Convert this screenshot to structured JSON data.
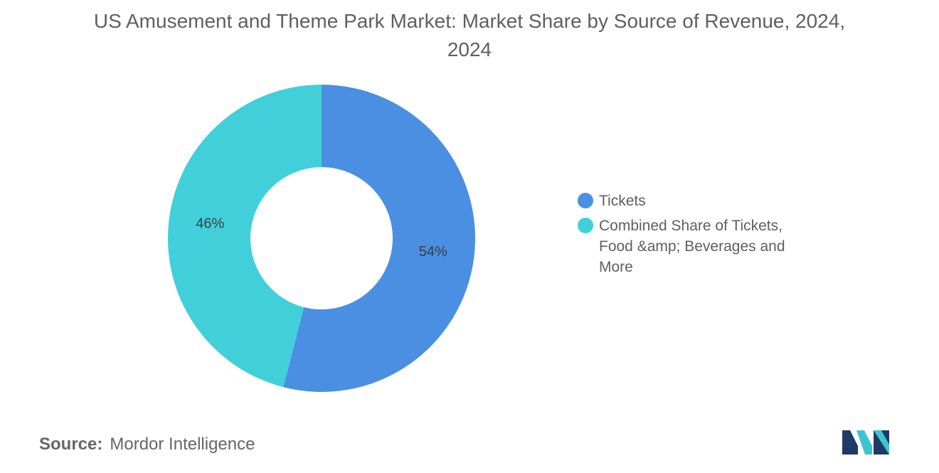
{
  "chart_data": {
    "type": "pie",
    "variant": "donut",
    "title": "US Amusement and Theme Park Market: Market Share by Source of Revenue, 2024, 2024",
    "categories": [
      "Tickets",
      "Combined Share of Tickets, Food &amp; Beverages and More"
    ],
    "values": [
      54,
      46
    ],
    "value_labels": [
      "54%",
      "46%"
    ],
    "colors": [
      "#4a8fe2",
      "#41d0da"
    ],
    "legend_position": "right"
  },
  "source": {
    "label": "Source:",
    "value": "Mordor Intelligence"
  },
  "logo": {
    "icon": "mordor-intelligence-logo-icon",
    "colors": [
      "#1f3a66",
      "#3fc3d4"
    ]
  }
}
